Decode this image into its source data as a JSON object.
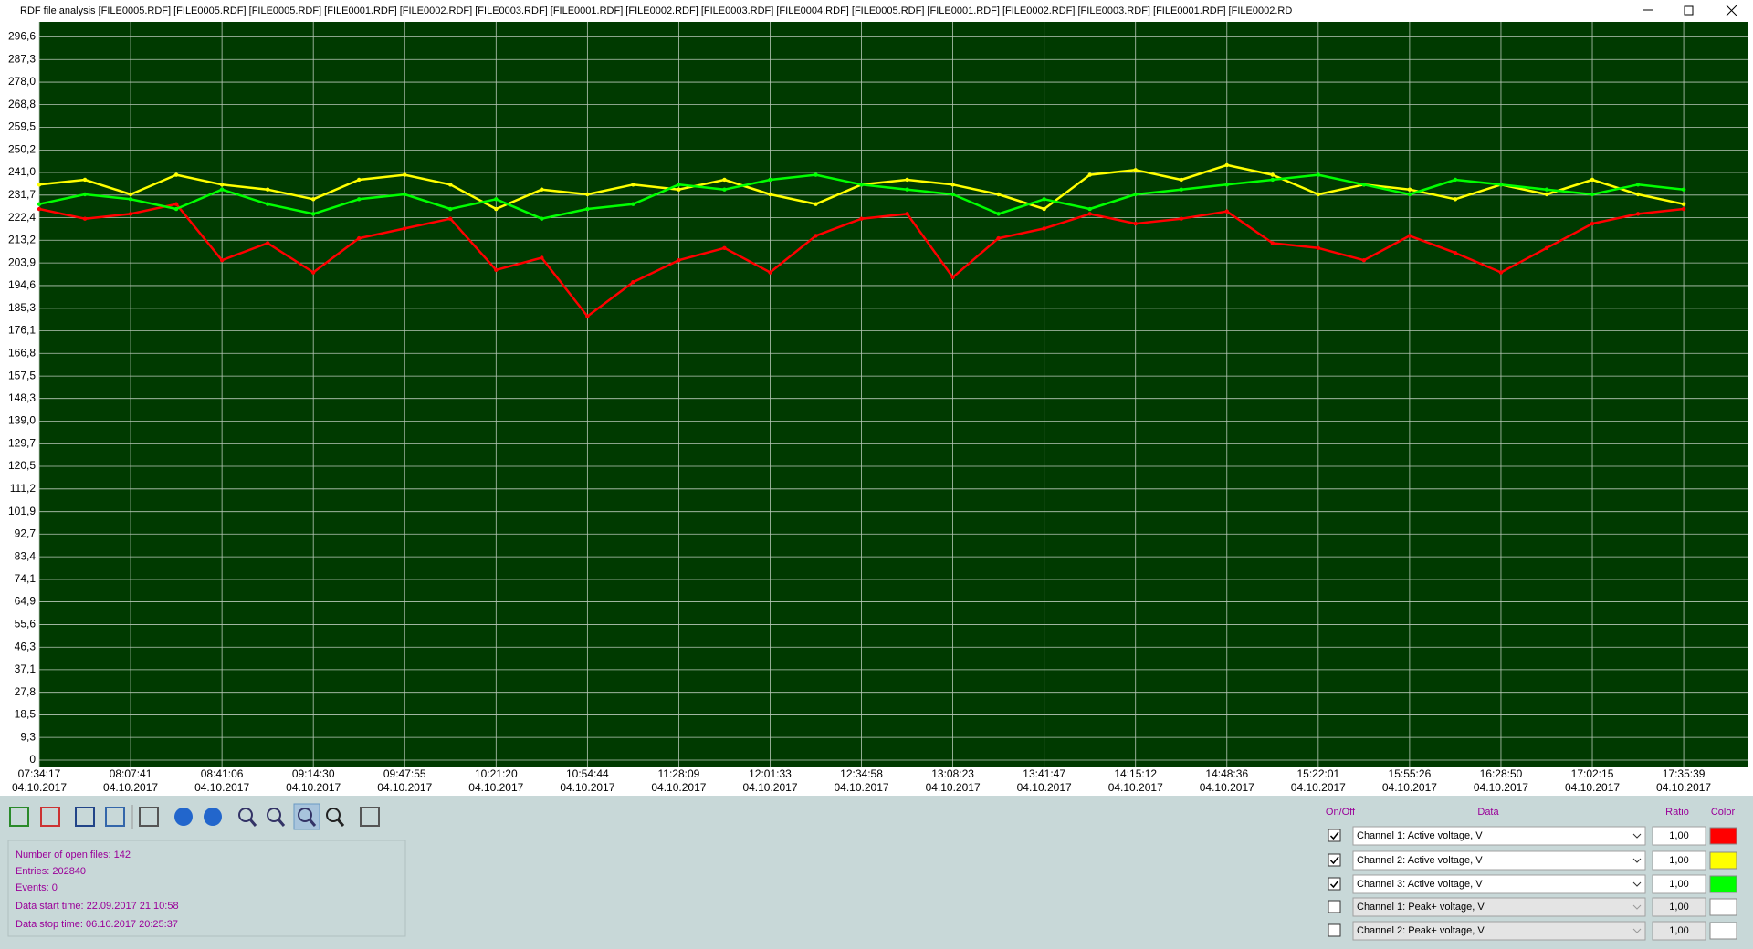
{
  "window": {
    "title": "RDF file analysis [FILE0005.RDF] [FILE0005.RDF] [FILE0005.RDF] [FILE0001.RDF] [FILE0002.RDF] [FILE0003.RDF] [FILE0001.RDF] [FILE0002.RDF] [FILE0003.RDF] [FILE0004.RDF] [FILE0005.RDF] [FILE0001.RDF] [FILE0002.RDF] [FILE0003.RDF] [FILE0001.RDF] [FILE0002.RD"
  },
  "chart_data": {
    "type": "line",
    "categories": [
      "07:34:17",
      null,
      "08:07:41",
      null,
      "08:41:06",
      null,
      "09:14:30",
      null,
      "09:47:55",
      null,
      "10:21:20",
      null,
      "10:54:44",
      null,
      "11:28:09",
      null,
      "12:01:33",
      null,
      "12:34:58",
      null,
      "13:08:23",
      null,
      "13:41:47",
      null,
      "14:15:12",
      null,
      "14:48:36",
      null,
      "15:22:01",
      null,
      "15:55:26",
      null,
      "16:28:50",
      null,
      "17:02:15",
      null,
      "17:35:39"
    ],
    "category_dates": [
      "04.10.2017",
      null,
      "04.10.2017",
      null,
      "04.10.2017",
      null,
      "04.10.2017",
      null,
      "04.10.2017",
      null,
      "04.10.2017",
      null,
      "04.10.2017",
      null,
      "04.10.2017",
      null,
      "04.10.2017",
      null,
      "04.10.2017",
      null,
      "04.10.2017",
      null,
      "04.10.2017",
      null,
      "04.10.2017",
      null,
      "04.10.2017",
      null,
      "04.10.2017",
      null,
      "04.10.2017",
      null,
      "04.10.2017",
      null,
      "04.10.2017",
      null,
      "04.10.2017"
    ],
    "series": [
      {
        "name": "Channel 1: Active voltage, V",
        "color": "#ff0000",
        "values": [
          226,
          222,
          224,
          228,
          205,
          212,
          200,
          214,
          218,
          222,
          201,
          206,
          182,
          196,
          205,
          210,
          200,
          215,
          222,
          224,
          198,
          214,
          218,
          224,
          220,
          222,
          225,
          212,
          210,
          205,
          215,
          208,
          200,
          210,
          220,
          224,
          226
        ]
      },
      {
        "name": "Channel 2: Active voltage, V",
        "color": "#ffff00",
        "values": [
          236,
          238,
          232,
          240,
          236,
          234,
          230,
          238,
          240,
          236,
          226,
          234,
          232,
          236,
          234,
          238,
          232,
          228,
          236,
          238,
          236,
          232,
          226,
          240,
          242,
          238,
          244,
          240,
          232,
          236,
          234,
          230,
          236,
          232,
          238,
          232,
          228
        ]
      },
      {
        "name": "Channel 3: Active voltage, V",
        "color": "#00ff00",
        "values": [
          228,
          232,
          230,
          226,
          234,
          228,
          224,
          230,
          232,
          226,
          230,
          222,
          226,
          228,
          236,
          234,
          238,
          240,
          236,
          234,
          232,
          224,
          230,
          226,
          232,
          234,
          236,
          238,
          240,
          236,
          232,
          238,
          236,
          234,
          232,
          236,
          234
        ]
      }
    ],
    "ylim": [
      0,
      301.6
    ],
    "yticks": [
      0,
      {
        "value": 9.3,
        "label": "9,3"
      },
      {
        "value": 18.5,
        "label": "18,5"
      },
      {
        "value": 27.8,
        "label": "27,8"
      },
      {
        "value": 37.1,
        "label": "37,1"
      },
      {
        "value": 46.3,
        "label": "46,3"
      },
      {
        "value": 55.6,
        "label": "55,6"
      },
      {
        "value": 64.9,
        "label": "64,9"
      },
      {
        "value": 74.1,
        "label": "74,1"
      },
      {
        "value": 83.4,
        "label": "83,4"
      },
      {
        "value": 92.7,
        "label": "92,7"
      },
      {
        "value": 101.9,
        "label": "101,9"
      },
      {
        "value": 111.2,
        "label": "111,2"
      },
      {
        "value": 120.5,
        "label": "120,5"
      },
      {
        "value": 129.7,
        "label": "129,7"
      },
      {
        "value": 139.0,
        "label": "139,0"
      },
      {
        "value": 148.3,
        "label": "148,3"
      },
      {
        "value": 157.5,
        "label": "157,5"
      },
      {
        "value": 166.8,
        "label": "166,8"
      },
      {
        "value": 176.1,
        "label": "176,1"
      },
      {
        "value": 185.3,
        "label": "185,3"
      },
      {
        "value": 194.6,
        "label": "194,6"
      },
      {
        "value": 203.9,
        "label": "203,9"
      },
      {
        "value": 213.2,
        "label": "213,2"
      },
      {
        "value": 222.4,
        "label": "222,4"
      },
      {
        "value": 231.7,
        "label": "231,7"
      },
      {
        "value": 241.0,
        "label": "241,0"
      },
      {
        "value": 250.2,
        "label": "250,2"
      },
      {
        "value": 259.5,
        "label": "259,5"
      },
      {
        "value": 268.8,
        "label": "268,8"
      },
      {
        "value": 278.0,
        "label": "278,0"
      },
      {
        "value": 287.3,
        "label": "287,3"
      },
      {
        "value": 296.6,
        "label": "296,6"
      }
    ],
    "grid": true,
    "background": "#003a00"
  },
  "info": [
    "Number of open files: 142",
    "Entries: 202840",
    "Events: 0",
    "Data start time: 22.09.2017 21:10:58",
    "Data stop time: 06.10.2017 20:25:37"
  ],
  "channels": {
    "headers": [
      "On/Off",
      "Data",
      "Ratio",
      "Color"
    ],
    "rows": [
      {
        "checked": true,
        "data": "Channel 1: Active voltage, V",
        "ratio": "1,00",
        "color": "#ff0000"
      },
      {
        "checked": true,
        "data": "Channel 2: Active voltage, V",
        "ratio": "1,00",
        "color": "#ffff00"
      },
      {
        "checked": true,
        "data": "Channel 3: Active voltage, V",
        "ratio": "1,00",
        "color": "#00ff00"
      },
      {
        "checked": false,
        "data": "Channel 1: Peak+ voltage, V",
        "ratio": "1,00",
        "color": "#ffffff"
      },
      {
        "checked": false,
        "data": "Channel 2: Peak+ voltage, V",
        "ratio": "1,00",
        "color": "#ffffff"
      }
    ]
  }
}
